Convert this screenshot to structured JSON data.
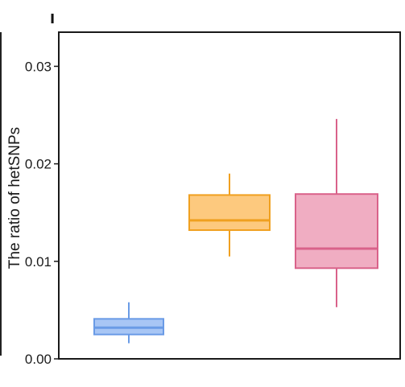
{
  "chart_data": {
    "type": "boxplot",
    "panel_label": "ı",
    "ylabel": "The ratio of hetSNPs",
    "xlabel": "",
    "ylim": [
      0,
      0.0335
    ],
    "yticks": [
      0.0,
      0.01,
      0.02,
      0.03
    ],
    "ytick_labels": [
      "0.00",
      "0.01",
      "0.02",
      "0.03"
    ],
    "grid": false,
    "legend": "none",
    "boxes": [
      {
        "stroke": "#6a9be6",
        "fill": "#a8c6f5",
        "whisker_low": 0.0016,
        "q1": 0.0025,
        "median": 0.0032,
        "q3": 0.0041,
        "whisker_high": 0.0058
      },
      {
        "stroke": "#f0a020",
        "fill": "#fdc97e",
        "whisker_low": 0.0105,
        "q1": 0.0132,
        "median": 0.0142,
        "q3": 0.0168,
        "whisker_high": 0.019
      },
      {
        "stroke": "#d9628a",
        "fill": "#f0adc2",
        "whisker_low": 0.0053,
        "q1": 0.0093,
        "median": 0.0113,
        "q3": 0.0169,
        "whisker_high": 0.0246
      }
    ]
  }
}
